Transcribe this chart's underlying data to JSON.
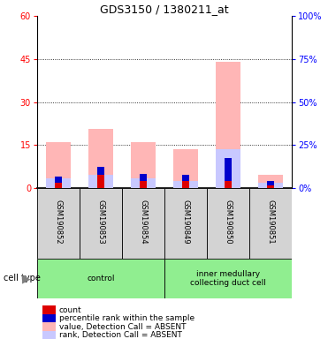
{
  "title": "GDS3150 / 1380211_at",
  "samples": [
    "GSM190852",
    "GSM190853",
    "GSM190854",
    "GSM190849",
    "GSM190850",
    "GSM190851"
  ],
  "value_absent": [
    16.0,
    20.5,
    16.0,
    13.5,
    44.0,
    4.5
  ],
  "rank_absent": [
    3.5,
    4.5,
    3.5,
    2.5,
    13.5,
    2.0
  ],
  "count": [
    2.0,
    4.5,
    2.5,
    2.5,
    2.5,
    1.0
  ],
  "percentile": [
    2.0,
    3.0,
    2.5,
    2.0,
    8.0,
    1.5
  ],
  "ylim_left": [
    0,
    60
  ],
  "ylim_right": [
    0,
    100
  ],
  "yticks_left": [
    0,
    15,
    30,
    45,
    60
  ],
  "yticks_right": [
    0,
    25,
    50,
    75,
    100
  ],
  "color_value_absent": "#ffb6b6",
  "color_rank_absent": "#c8c8ff",
  "color_count": "#dd0000",
  "color_percentile": "#0000cc",
  "color_group": "#90ee90",
  "color_sample_bg": "#d3d3d3",
  "group_spans": [
    [
      0,
      2,
      "control"
    ],
    [
      3,
      5,
      "inner medullary\ncollecting duct cell"
    ]
  ],
  "legend_labels": [
    "count",
    "percentile rank within the sample",
    "value, Detection Call = ABSENT",
    "rank, Detection Call = ABSENT"
  ],
  "legend_colors": [
    "#dd0000",
    "#0000cc",
    "#ffb6b6",
    "#c8c8ff"
  ],
  "cell_type_label": "cell type"
}
